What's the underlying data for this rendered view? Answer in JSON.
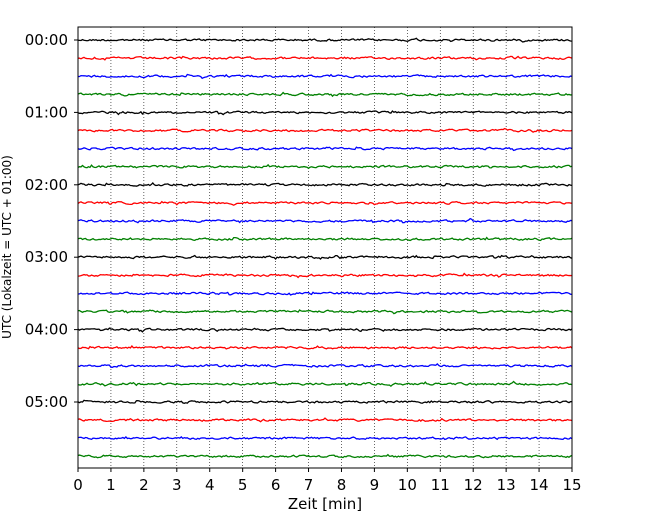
{
  "chart_data": {
    "type": "line",
    "title": "",
    "xlabel": "Zeit  [min]",
    "ylabel": "UTC (Lokalzeit = UTC + 01:00)",
    "xlim": [
      0,
      15
    ],
    "x_ticks": [
      "0",
      "1",
      "2",
      "3",
      "4",
      "5",
      "6",
      "7",
      "8",
      "9",
      "10",
      "11",
      "12",
      "13",
      "14",
      "15"
    ],
    "y_tick_labels": [
      "00:00",
      "01:00",
      "02:00",
      "03:00",
      "04:00",
      "05:00"
    ],
    "rows_per_hour": 4,
    "row_count": 24,
    "row_minutes": 15,
    "row_start_times": [
      "00:00",
      "00:15",
      "00:30",
      "00:45",
      "01:00",
      "01:15",
      "01:30",
      "01:45",
      "02:00",
      "02:15",
      "02:30",
      "02:45",
      "03:00",
      "03:15",
      "03:30",
      "03:45",
      "04:00",
      "04:15",
      "04:30",
      "04:45",
      "05:00",
      "05:15",
      "05:30",
      "05:45"
    ],
    "row_colors": [
      "#000000",
      "#ff0000",
      "#0000ff",
      "#008000"
    ],
    "grid": "vertical dotted at each minute",
    "signal": "noise-like seismic trace, small amplitude"
  }
}
